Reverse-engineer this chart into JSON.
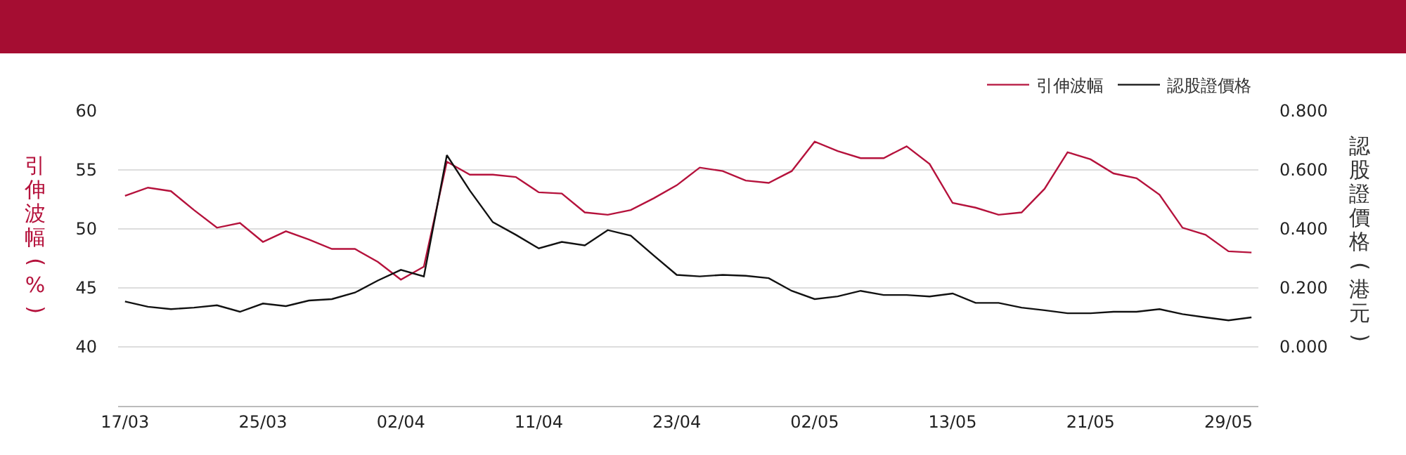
{
  "chart_data": {
    "type": "line",
    "ylabel": "引伸波幅(%)",
    "y2label": "認股證價格(港元)",
    "categories": [
      "17/03",
      null,
      null,
      null,
      null,
      null,
      "25/03",
      null,
      null,
      null,
      null,
      null,
      "02/04",
      null,
      null,
      null,
      null,
      null,
      "11/04",
      null,
      null,
      null,
      null,
      null,
      "23/04",
      null,
      null,
      null,
      null,
      null,
      "02/05",
      null,
      null,
      null,
      null,
      null,
      "13/05",
      null,
      null,
      null,
      null,
      null,
      "21/05",
      null,
      null,
      null,
      null,
      null,
      "29/05",
      null
    ],
    "series": [
      {
        "name": "引伸波幅",
        "color": "#b5123c",
        "values": [
          52.8,
          53.5,
          53.2,
          51.6,
          50.1,
          50.5,
          48.9,
          49.8,
          49.1,
          48.3,
          48.3,
          47.2,
          45.7,
          46.8,
          55.7,
          54.6,
          54.6,
          54.4,
          53.1,
          53.0,
          51.4,
          51.2,
          51.6,
          52.6,
          53.7,
          55.2,
          54.9,
          54.1,
          53.9,
          54.9,
          57.4,
          56.6,
          56.0,
          56.0,
          57.0,
          55.5,
          52.2,
          51.8,
          51.2,
          51.4,
          53.4,
          56.5,
          55.9,
          54.7,
          54.3,
          52.9,
          50.1,
          49.5,
          48.1,
          48.0
        ]
      },
      {
        "name": "認股證價格",
        "color": "#111111",
        "axis": "y2",
        "values": [
          0.154,
          0.136,
          0.128,
          0.133,
          0.141,
          0.119,
          0.147,
          0.138,
          0.157,
          0.162,
          0.184,
          0.225,
          0.261,
          0.239,
          0.65,
          0.53,
          0.423,
          0.38,
          0.334,
          0.356,
          0.344,
          0.396,
          0.377,
          0.31,
          0.244,
          0.239,
          0.244,
          0.241,
          0.233,
          0.19,
          0.162,
          0.171,
          0.19,
          0.176,
          0.176,
          0.171,
          0.181,
          0.149,
          0.149,
          0.133,
          0.124,
          0.114,
          0.114,
          0.119,
          0.119,
          0.128,
          0.111,
          0.1,
          0.09,
          0.1
        ]
      }
    ],
    "ylim": [
      35,
      60
    ],
    "yticks": [
      40,
      45,
      50,
      55,
      60
    ],
    "y2lim": [
      -0.2,
      0.8
    ],
    "y2ticks": [
      {
        "value": 0,
        "label": "0.000"
      },
      {
        "value": 0.2,
        "label": "0.200"
      },
      {
        "value": 0.4,
        "label": "0.400"
      },
      {
        "value": 0.6,
        "label": "0.600"
      },
      {
        "value": 0.8,
        "label": "0.800"
      }
    ],
    "grid": "y",
    "legend": "top right",
    "marker": "none",
    "line_style": "solid"
  }
}
